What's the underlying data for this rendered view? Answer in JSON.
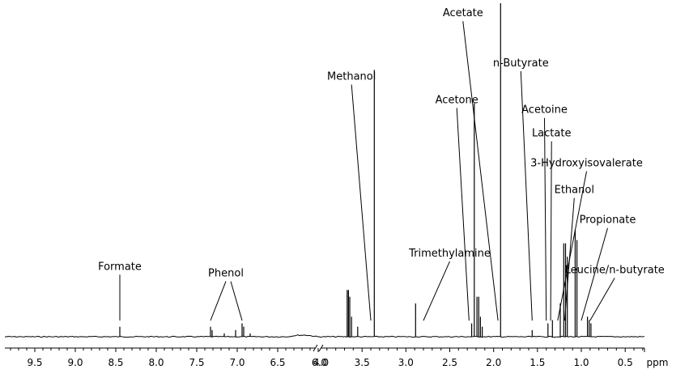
{
  "chart_data": {
    "type": "line",
    "title": "",
    "xlabel": "ppm",
    "ylabel": "",
    "axis_break": [
      6.0,
      4.0
    ],
    "segments": [
      {
        "xlim": [
          9.85,
          6.0
        ]
      },
      {
        "xlim": [
          4.0,
          0.28
        ]
      }
    ],
    "x_ticks": [
      "9.5",
      "9.0",
      "8.5",
      "8.0",
      "7.5",
      "7.0",
      "6.5",
      "6.0",
      "4.0",
      "3.5",
      "3.0",
      "2.5",
      "2.0",
      "1.5",
      "1.0",
      "0.5"
    ],
    "x_tick_values": [
      9.5,
      9.0,
      8.5,
      8.0,
      7.5,
      7.0,
      6.5,
      6.0,
      4.0,
      3.5,
      3.0,
      2.5,
      2.0,
      1.5,
      1.0,
      0.5
    ],
    "unit_label": "ppm",
    "peaks": [
      {
        "ppm": 8.45,
        "height": 0.03
      },
      {
        "ppm": 7.33,
        "height": 0.03
      },
      {
        "ppm": 7.31,
        "height": 0.02
      },
      {
        "ppm": 7.16,
        "height": 0.01
      },
      {
        "ppm": 7.02,
        "height": 0.02
      },
      {
        "ppm": 6.94,
        "height": 0.04
      },
      {
        "ppm": 6.92,
        "height": 0.03
      },
      {
        "ppm": 6.84,
        "height": 0.01
      },
      {
        "ppm": 3.67,
        "height": 0.14
      },
      {
        "ppm": 3.655,
        "height": 0.14
      },
      {
        "ppm": 3.64,
        "height": 0.12
      },
      {
        "ppm": 3.62,
        "height": 0.06
      },
      {
        "ppm": 3.55,
        "height": 0.03
      },
      {
        "ppm": 3.36,
        "height": 0.8
      },
      {
        "ppm": 2.89,
        "height": 0.1
      },
      {
        "ppm": 2.25,
        "height": 0.04
      },
      {
        "ppm": 2.22,
        "height": 0.7
      },
      {
        "ppm": 2.19,
        "height": 0.12
      },
      {
        "ppm": 2.17,
        "height": 0.12
      },
      {
        "ppm": 2.15,
        "height": 0.06
      },
      {
        "ppm": 2.13,
        "height": 0.03
      },
      {
        "ppm": 1.92,
        "height": 1.0
      },
      {
        "ppm": 1.56,
        "height": 0.02
      },
      {
        "ppm": 1.38,
        "height": 0.04
      },
      {
        "ppm": 1.33,
        "height": 0.05
      },
      {
        "ppm": 1.24,
        "height": 0.1
      },
      {
        "ppm": 1.2,
        "height": 0.28
      },
      {
        "ppm": 1.18,
        "height": 0.28
      },
      {
        "ppm": 1.16,
        "height": 0.24
      },
      {
        "ppm": 1.07,
        "height": 0.32
      },
      {
        "ppm": 1.05,
        "height": 0.29
      },
      {
        "ppm": 0.93,
        "height": 0.06
      },
      {
        "ppm": 0.91,
        "height": 0.05
      },
      {
        "ppm": 0.89,
        "height": 0.04
      }
    ],
    "annotations": [
      {
        "label": "Formate",
        "ppm": 8.45,
        "text_ppm": 8.45,
        "row": 0.78
      },
      {
        "label": "Phenol",
        "ppm": 7.33,
        "text_ppm": 7.14,
        "row": 0.8,
        "ppm2": 6.94
      },
      {
        "label": "Methanol",
        "ppm": 3.4,
        "text_ppm": 3.62,
        "row": 0.21
      },
      {
        "label": "Trimethylamine",
        "ppm": 2.8,
        "text_ppm": 2.5,
        "row": 0.74
      },
      {
        "label": "Acetone",
        "ppm": 2.28,
        "text_ppm": 2.42,
        "row": 0.28
      },
      {
        "label": "Acetate",
        "ppm": 1.95,
        "text_ppm": 2.35,
        "row": 0.02
      },
      {
        "label": "n-Butyrate",
        "ppm": 1.56,
        "text_ppm": 1.69,
        "row": 0.17
      },
      {
        "label": "Acetoine",
        "ppm": 1.4,
        "text_ppm": 1.42,
        "row": 0.31
      },
      {
        "label": "Lactate",
        "ppm": 1.35,
        "text_ppm": 1.34,
        "row": 0.38
      },
      {
        "label": "3-Hydroxyisovalerate",
        "ppm": 1.27,
        "text_ppm": 0.94,
        "row": 0.47
      },
      {
        "label": "Ethanol",
        "ppm": 1.19,
        "text_ppm": 1.08,
        "row": 0.55
      },
      {
        "label": "Propionate",
        "ppm": 1.0,
        "text_ppm": 0.7,
        "row": 0.64
      },
      {
        "label": "Leucine/n-butyrate",
        "ppm": 0.9,
        "text_ppm": 0.62,
        "row": 0.79
      }
    ],
    "grid": false,
    "legend": "none"
  }
}
